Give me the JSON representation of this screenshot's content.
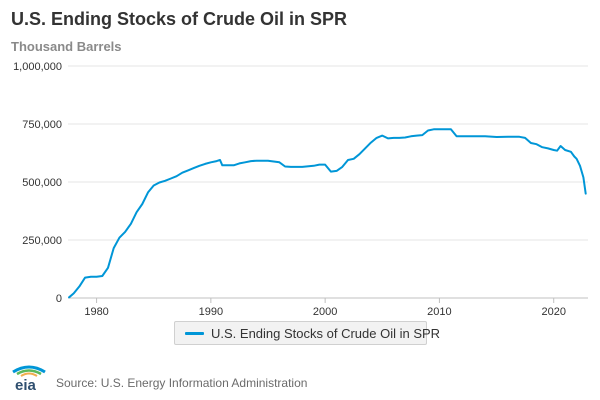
{
  "chart_data": {
    "type": "line",
    "title": "U.S. Ending Stocks of Crude Oil in SPR",
    "subtitle": "Thousand Barrels",
    "xlabel": "",
    "ylabel": "",
    "xlim": [
      1977.5,
      2023.0
    ],
    "ylim": [
      0,
      1000000
    ],
    "x_ticks": [
      {
        "value": 1980,
        "label": "1980"
      },
      {
        "value": 1990,
        "label": "1990"
      },
      {
        "value": 2000,
        "label": "2000"
      },
      {
        "value": 2010,
        "label": "2010"
      },
      {
        "value": 2020,
        "label": "2020"
      }
    ],
    "y_ticks": [
      {
        "value": 0,
        "label": "0"
      },
      {
        "value": 250000,
        "label": "250,000"
      },
      {
        "value": 500000,
        "label": "500,000"
      },
      {
        "value": 750000,
        "label": "750,000"
      },
      {
        "value": 1000000,
        "label": "1,000,000"
      }
    ],
    "grid": {
      "horizontal": true,
      "vertical": false
    },
    "legend_position": "bottom-center",
    "series": [
      {
        "name": "U.S. Ending Stocks of Crude Oil in SPR",
        "color": "#0096d7",
        "x": [
          1977.6,
          1978.0,
          1978.5,
          1979.0,
          1979.5,
          1980.0,
          1980.5,
          1981.0,
          1981.5,
          1982.0,
          1982.5,
          1983.0,
          1983.5,
          1984.0,
          1984.5,
          1985.0,
          1985.5,
          1986.0,
          1986.5,
          1987.0,
          1987.5,
          1988.0,
          1988.5,
          1989.0,
          1989.5,
          1990.0,
          1990.5,
          1990.8,
          1991.0,
          1991.5,
          1992.0,
          1992.5,
          1993.0,
          1993.5,
          1994.0,
          1995.0,
          1996.0,
          1996.5,
          1997.0,
          1998.0,
          1999.0,
          1999.5,
          2000.0,
          2000.5,
          2001.0,
          2001.5,
          2002.0,
          2002.5,
          2003.0,
          2003.5,
          2004.0,
          2004.5,
          2005.0,
          2005.5,
          2006.0,
          2006.5,
          2007.0,
          2007.5,
          2008.0,
          2008.5,
          2009.0,
          2009.5,
          2010.0,
          2010.5,
          2011.0,
          2011.5,
          2012.0,
          2013.0,
          2014.0,
          2015.0,
          2016.0,
          2016.5,
          2017.0,
          2017.5,
          2018.0,
          2018.5,
          2019.0,
          2019.5,
          2020.0,
          2020.3,
          2020.6,
          2021.0,
          2021.5,
          2021.8,
          2022.0,
          2022.3,
          2022.6,
          2022.8
        ],
        "values": [
          3000,
          20000,
          50000,
          88000,
          92000,
          92000,
          95000,
          130000,
          215000,
          260000,
          285000,
          320000,
          370000,
          405000,
          455000,
          485000,
          498000,
          505000,
          515000,
          525000,
          540000,
          550000,
          560000,
          570000,
          578000,
          585000,
          590000,
          595000,
          572000,
          572000,
          572000,
          580000,
          585000,
          590000,
          592000,
          592000,
          585000,
          567000,
          565000,
          565000,
          570000,
          575000,
          575000,
          545000,
          548000,
          565000,
          595000,
          600000,
          620000,
          645000,
          670000,
          690000,
          700000,
          688000,
          690000,
          690000,
          692000,
          697000,
          700000,
          702000,
          722000,
          727000,
          727000,
          727000,
          727000,
          697000,
          697000,
          697000,
          697000,
          694000,
          695000,
          695000,
          695000,
          690000,
          668000,
          663000,
          650000,
          645000,
          638000,
          635000,
          655000,
          638000,
          630000,
          610000,
          600000,
          570000,
          520000,
          450000
        ]
      }
    ]
  },
  "legend": {
    "label": "U.S. Ending Stocks of Crude Oil in SPR",
    "color": "#0096d7"
  },
  "footer": {
    "logo_text": "eia",
    "logo_colors": [
      "#0096d7",
      "#5cb85c",
      "#f0ad4e"
    ],
    "source": "Source: U.S. Energy Information Administration"
  },
  "colors": {
    "series": "#0096d7",
    "grid": "#e6e6e6",
    "axis": "#c0c0c0",
    "text": "#333333"
  }
}
